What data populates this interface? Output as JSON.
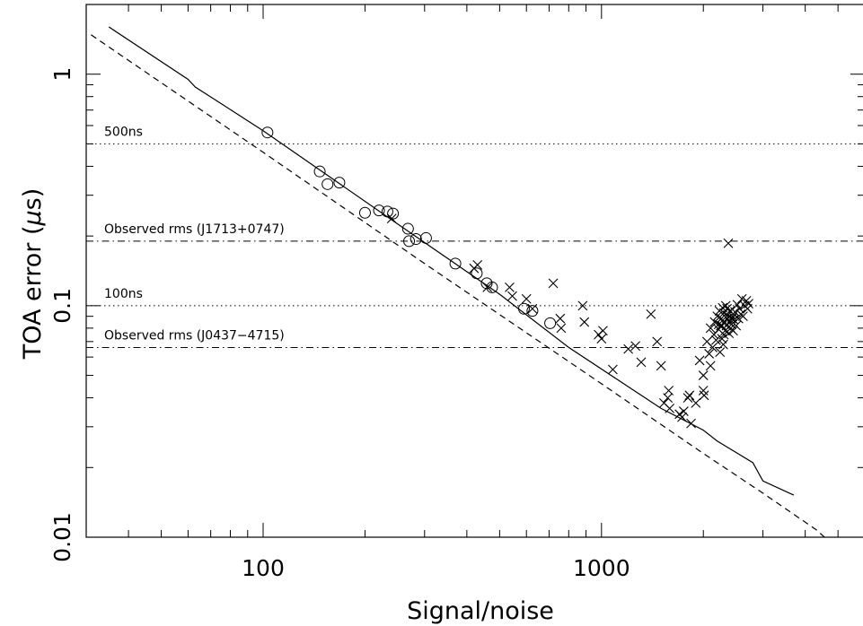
{
  "chart_data": {
    "type": "scatter",
    "title": "",
    "xlabel": "Signal/noise",
    "ylabel_main": "TOA error (",
    "ylabel_mu": "μ",
    "ylabel_unit": "s)",
    "xscale": "log",
    "yscale": "log",
    "xlim": [
      30,
      6000
    ],
    "ylim": [
      0.01,
      2
    ],
    "x_ticklabels": [
      {
        "value": 100,
        "label": "100"
      },
      {
        "value": 1000,
        "label": "1000"
      }
    ],
    "y_ticklabels": [
      {
        "value": 1,
        "label": "1"
      },
      {
        "value": 0.1,
        "label": "0.1"
      },
      {
        "value": 0.01,
        "label": "0.01"
      }
    ],
    "reference_lines": [
      {
        "y": 0.5,
        "style": "dotted",
        "label": "500ns"
      },
      {
        "y": 0.19,
        "style": "dashdot",
        "label": "Observed rms (J1713+0747)"
      },
      {
        "y": 0.1,
        "style": "dotted",
        "label": "100ns"
      },
      {
        "y": 0.066,
        "style": "dashdot",
        "label": "Observed rms (J0437−4715)"
      }
    ],
    "curves": [
      {
        "style": "solid",
        "points": [
          [
            35,
            1.6
          ],
          [
            60,
            0.95
          ],
          [
            63,
            0.88
          ],
          [
            100,
            0.57
          ],
          [
            250,
            0.225
          ],
          [
            500,
            0.112
          ],
          [
            800,
            0.066
          ],
          [
            1500,
            0.036
          ],
          [
            2000,
            0.029
          ],
          [
            2200,
            0.026
          ],
          [
            2800,
            0.021
          ],
          [
            3000,
            0.0175
          ],
          [
            3700,
            0.0152
          ]
        ]
      },
      {
        "style": "dashed",
        "points": [
          [
            31,
            1.48
          ],
          [
            100,
            0.46
          ],
          [
            300,
            0.152
          ],
          [
            1000,
            0.046
          ],
          [
            2000,
            0.023
          ],
          [
            3000,
            0.0155
          ],
          [
            4300,
            0.0108
          ],
          [
            4600,
            0.0099
          ]
        ]
      }
    ],
    "series": [
      {
        "marker": "circle",
        "points": [
          [
            103,
            0.56
          ],
          [
            147,
            0.38
          ],
          [
            155,
            0.335
          ],
          [
            168,
            0.34
          ],
          [
            200,
            0.252
          ],
          [
            220,
            0.258
          ],
          [
            233,
            0.255
          ],
          [
            242,
            0.25
          ],
          [
            268,
            0.215
          ],
          [
            270,
            0.19
          ],
          [
            283,
            0.194
          ],
          [
            303,
            0.196
          ],
          [
            370,
            0.152
          ],
          [
            428,
            0.138
          ],
          [
            458,
            0.125
          ],
          [
            475,
            0.12
          ],
          [
            590,
            0.097
          ],
          [
            625,
            0.095
          ],
          [
            705,
            0.084
          ]
        ]
      },
      {
        "marker": "cross",
        "points": [
          [
            240,
            0.238
          ],
          [
            420,
            0.145
          ],
          [
            430,
            0.15
          ],
          [
            460,
            0.12
          ],
          [
            535,
            0.12
          ],
          [
            545,
            0.11
          ],
          [
            600,
            0.107
          ],
          [
            625,
            0.097
          ],
          [
            720,
            0.125
          ],
          [
            755,
            0.088
          ],
          [
            760,
            0.08
          ],
          [
            880,
            0.1
          ],
          [
            890,
            0.085
          ],
          [
            980,
            0.075
          ],
          [
            1000,
            0.072
          ],
          [
            1010,
            0.078
          ],
          [
            1080,
            0.053
          ],
          [
            1200,
            0.065
          ],
          [
            1260,
            0.067
          ],
          [
            1310,
            0.057
          ],
          [
            1400,
            0.092
          ],
          [
            1460,
            0.07
          ],
          [
            1500,
            0.055
          ],
          [
            1530,
            0.038
          ],
          [
            1570,
            0.04
          ],
          [
            1580,
            0.043
          ],
          [
            1590,
            0.036
          ],
          [
            1700,
            0.034
          ],
          [
            1730,
            0.033
          ],
          [
            1750,
            0.035
          ],
          [
            1800,
            0.04
          ],
          [
            1820,
            0.041
          ],
          [
            1840,
            0.031
          ],
          [
            1900,
            0.038
          ],
          [
            1950,
            0.058
          ],
          [
            2000,
            0.043
          ],
          [
            2000,
            0.05
          ],
          [
            2010,
            0.041
          ],
          [
            2050,
            0.07
          ],
          [
            2080,
            0.062
          ],
          [
            2100,
            0.055
          ],
          [
            2100,
            0.08
          ],
          [
            2130,
            0.066
          ],
          [
            2150,
            0.075
          ],
          [
            2160,
            0.085
          ],
          [
            2180,
            0.071
          ],
          [
            2200,
            0.09
          ],
          [
            2220,
            0.079
          ],
          [
            2230,
            0.095
          ],
          [
            2240,
            0.063
          ],
          [
            2250,
            0.082
          ],
          [
            2260,
            0.088
          ],
          [
            2270,
            0.072
          ],
          [
            2280,
            0.098
          ],
          [
            2290,
            0.068
          ],
          [
            2300,
            0.093
          ],
          [
            2310,
            0.085
          ],
          [
            2320,
            0.078
          ],
          [
            2330,
            0.1
          ],
          [
            2340,
            0.082
          ],
          [
            2350,
            0.088
          ],
          [
            2360,
            0.091
          ],
          [
            2370,
            0.186
          ],
          [
            2380,
            0.076
          ],
          [
            2390,
            0.085
          ],
          [
            2400,
            0.095
          ],
          [
            2420,
            0.083
          ],
          [
            2440,
            0.09
          ],
          [
            2450,
            0.078
          ],
          [
            2460,
            0.087
          ],
          [
            2480,
            0.094
          ],
          [
            2500,
            0.082
          ],
          [
            2520,
            0.101
          ],
          [
            2540,
            0.088
          ],
          [
            2560,
            0.097
          ],
          [
            2580,
            0.092
          ],
          [
            2600,
            0.107
          ],
          [
            2620,
            0.09
          ],
          [
            2650,
            0.1
          ],
          [
            2680,
            0.105
          ],
          [
            2700,
            0.097
          ],
          [
            2720,
            0.102
          ],
          [
            2300,
            0.075
          ],
          [
            2270,
            0.082
          ],
          [
            2350,
            0.097
          ],
          [
            2410,
            0.08
          ],
          [
            2430,
            0.088
          ],
          [
            2220,
            0.083
          ]
        ]
      }
    ],
    "grid": false,
    "legend": "none"
  }
}
